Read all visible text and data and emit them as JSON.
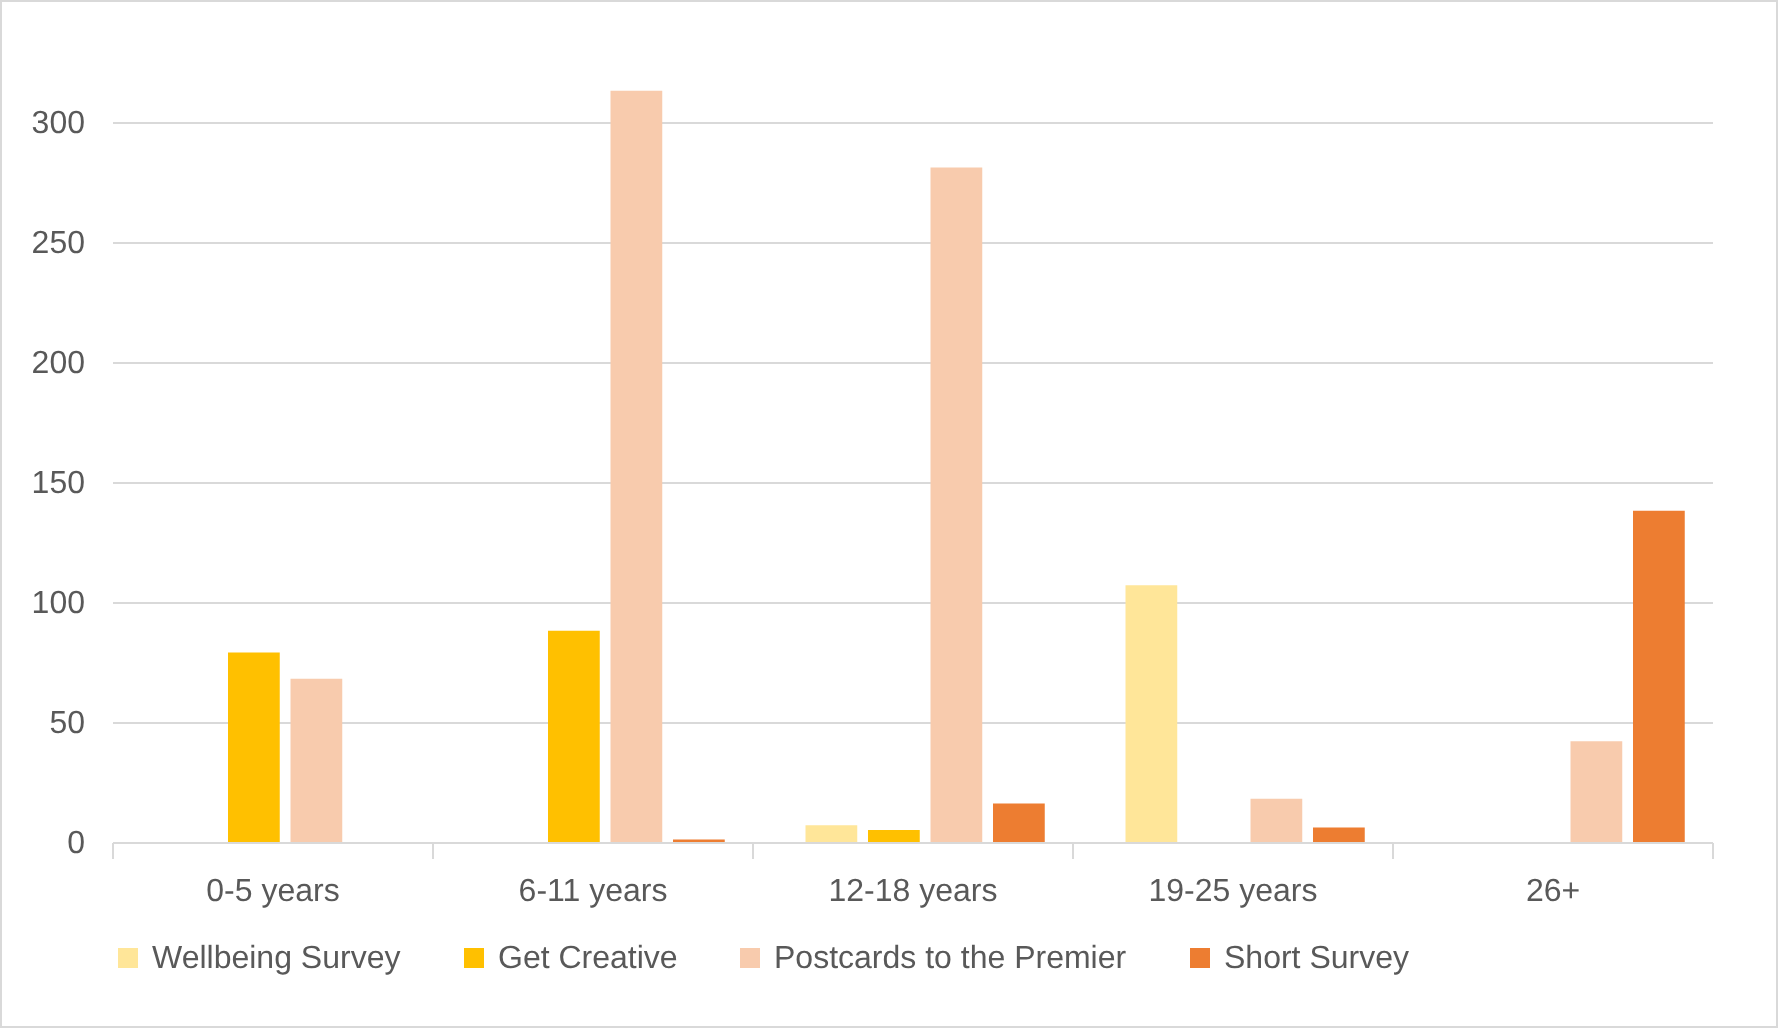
{
  "chart_data": {
    "type": "bar",
    "categories": [
      "0-5 years",
      "6-11 years",
      "12-18 years",
      "19-25 years",
      "26+"
    ],
    "series": [
      {
        "name": "Wellbeing Survey",
        "color": "#ffe699",
        "values": [
          null,
          null,
          7,
          107,
          null
        ]
      },
      {
        "name": "Get Creative",
        "color": "#ffc000",
        "values": [
          79,
          88,
          5,
          null,
          null
        ]
      },
      {
        "name": "Postcards to the Premier",
        "color": "#f8cbad",
        "values": [
          68,
          313,
          281,
          18,
          42
        ]
      },
      {
        "name": "Short Survey",
        "color": "#ed7d31",
        "values": [
          null,
          1,
          16,
          6,
          138
        ]
      }
    ],
    "ylim": [
      0,
      350
    ],
    "yticks": [
      0,
      50,
      100,
      150,
      200,
      250,
      300
    ],
    "grid": "y",
    "legend": "bottom"
  }
}
